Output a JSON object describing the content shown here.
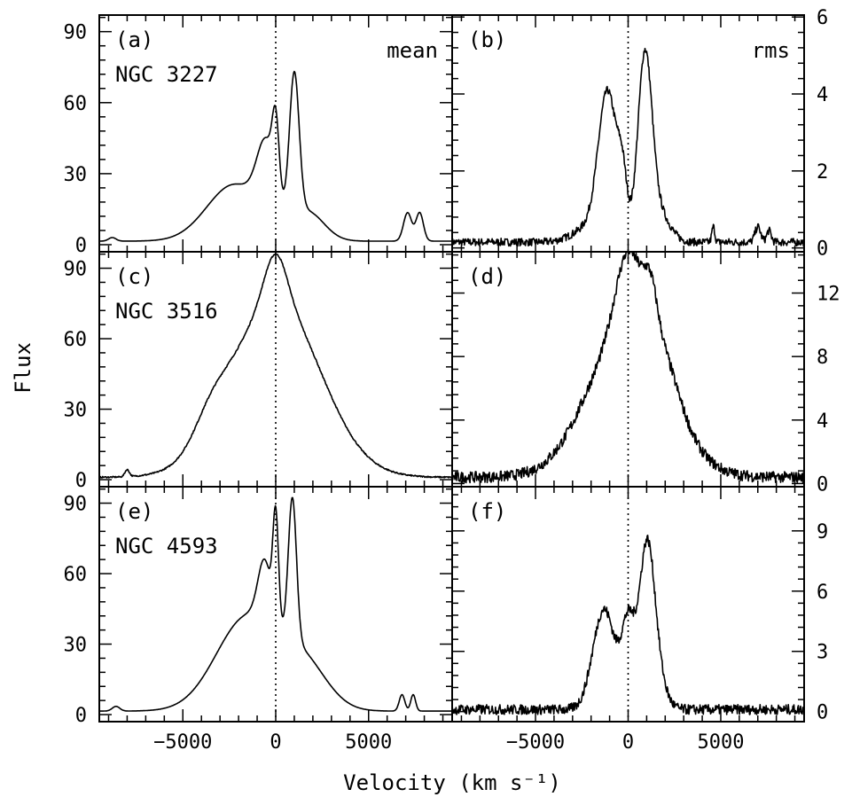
{
  "figure": {
    "ylabel": "Flux",
    "xlabel": "Velocity (km s⁻¹)"
  },
  "chart_data": [
    {
      "id": "a",
      "type": "line",
      "panel_label": "(a)",
      "object_label": "NGC 3227",
      "corner_label": "mean",
      "xlim": [
        -9500,
        9500
      ],
      "ylim": [
        -3,
        97
      ],
      "yticks": [
        0,
        30,
        60,
        90
      ],
      "ytick_labels": [
        "0",
        "30",
        "60",
        "90"
      ],
      "ytick_side": "left",
      "dotted_zero_line": true,
      "profile": {
        "kind": "mean",
        "base": 1.5,
        "lobes": [
          [
            -2200,
            1500,
            24
          ],
          [
            -500,
            500,
            30
          ],
          [
            0,
            180,
            28
          ],
          [
            1000,
            260,
            60
          ],
          [
            1700,
            900,
            12
          ]
        ],
        "sat": [
          [
            7100,
            220,
            12
          ],
          [
            7750,
            200,
            12
          ]
        ],
        "bumps": [
          [
            -8800,
            200,
            1.5
          ]
        ],
        "noise": 0
      }
    },
    {
      "id": "b",
      "type": "line",
      "panel_label": "(b)",
      "object_label": "",
      "corner_label": "rms",
      "xlim": [
        -9500,
        9500
      ],
      "ylim": [
        -0.1,
        6.05
      ],
      "yticks": [
        0,
        2,
        4,
        6
      ],
      "ytick_labels": [
        "0",
        "2",
        "4",
        "6"
      ],
      "ytick_side": "right",
      "dotted_zero_line": true,
      "profile": {
        "kind": "rms",
        "base": 0.15,
        "lobes": [
          [
            -1100,
            500,
            3.7
          ],
          [
            -300,
            250,
            1.3
          ],
          [
            900,
            380,
            4.6
          ],
          [
            1600,
            600,
            0.8
          ],
          [
            -2000,
            900,
            0.4
          ]
        ],
        "sat": [
          [
            7000,
            150,
            0.4
          ],
          [
            7600,
            120,
            0.3
          ],
          [
            4600,
            80,
            0.4
          ]
        ],
        "bumps": [],
        "noise": 0.1
      }
    },
    {
      "id": "c",
      "type": "line",
      "panel_label": "(c)",
      "object_label": "NGC 3516",
      "corner_label": "",
      "xlim": [
        -9500,
        9500
      ],
      "ylim": [
        -3,
        97
      ],
      "yticks": [
        0,
        30,
        60,
        90
      ],
      "ytick_labels": [
        "0",
        "30",
        "60",
        "90"
      ],
      "ytick_side": "left",
      "dotted_zero_line": true,
      "profile": {
        "kind": "mean",
        "base": 1,
        "lobes": [
          [
            0,
            2400,
            75
          ],
          [
            0,
            600,
            20
          ],
          [
            -3500,
            900,
            10
          ]
        ],
        "sat": [],
        "bumps": [
          [
            -8000,
            120,
            3
          ]
        ],
        "noise": 0.3
      }
    },
    {
      "id": "d",
      "type": "line",
      "panel_label": "(d)",
      "object_label": "",
      "corner_label": "",
      "xlim": [
        -9500,
        9500
      ],
      "ylim": [
        -0.2,
        14.6
      ],
      "yticks": [
        0,
        4,
        8,
        12
      ],
      "ytick_labels": [
        "0",
        "4",
        "8",
        "12"
      ],
      "ytick_side": "right",
      "dotted_zero_line": true,
      "profile": {
        "kind": "rms",
        "base": 0.4,
        "lobes": [
          [
            0,
            2100,
            9.5
          ],
          [
            0,
            650,
            4.5
          ],
          [
            1200,
            350,
            2.5
          ],
          [
            1800,
            900,
            2
          ]
        ],
        "sat": [],
        "bumps": [],
        "noise": 0.35
      }
    },
    {
      "id": "e",
      "type": "line",
      "panel_label": "(e)",
      "object_label": "NGC 4593",
      "corner_label": "",
      "xlim": [
        -9500,
        9500
      ],
      "ylim": [
        -3,
        97
      ],
      "yticks": [
        0,
        30,
        60,
        90
      ],
      "ytick_labels": [
        "0",
        "30",
        "60",
        "90"
      ],
      "ytick_side": "left",
      "dotted_zero_line": true,
      "profile": {
        "kind": "mean",
        "base": 1.5,
        "lobes": [
          [
            -1500,
            1700,
            40
          ],
          [
            -600,
            350,
            25
          ],
          [
            0,
            150,
            45
          ],
          [
            900,
            220,
            60
          ],
          [
            1500,
            1300,
            18
          ]
        ],
        "sat": [
          [
            6800,
            150,
            7
          ],
          [
            7400,
            130,
            7
          ]
        ],
        "bumps": [
          [
            -8600,
            200,
            2
          ]
        ],
        "noise": 0
      }
    },
    {
      "id": "f",
      "type": "line",
      "panel_label": "(f)",
      "object_label": "",
      "corner_label": "",
      "xlim": [
        -9500,
        9500
      ],
      "ylim": [
        -0.5,
        11.2
      ],
      "yticks": [
        0,
        3,
        6,
        9
      ],
      "ytick_labels": [
        "0",
        "3",
        "6",
        "9"
      ],
      "ytick_side": "right",
      "dotted_zero_line": true,
      "profile": {
        "kind": "rms",
        "base": 0.1,
        "lobes": [
          [
            -1300,
            600,
            5.0
          ],
          [
            0,
            350,
            4.0
          ],
          [
            1000,
            420,
            7.5
          ],
          [
            1500,
            500,
            1.5
          ]
        ],
        "sat": [],
        "bumps": [],
        "noise": 0.25
      }
    }
  ],
  "xticks": [
    -5000,
    0,
    5000
  ],
  "xtick_labels": [
    "−5000",
    "0",
    "5000"
  ]
}
